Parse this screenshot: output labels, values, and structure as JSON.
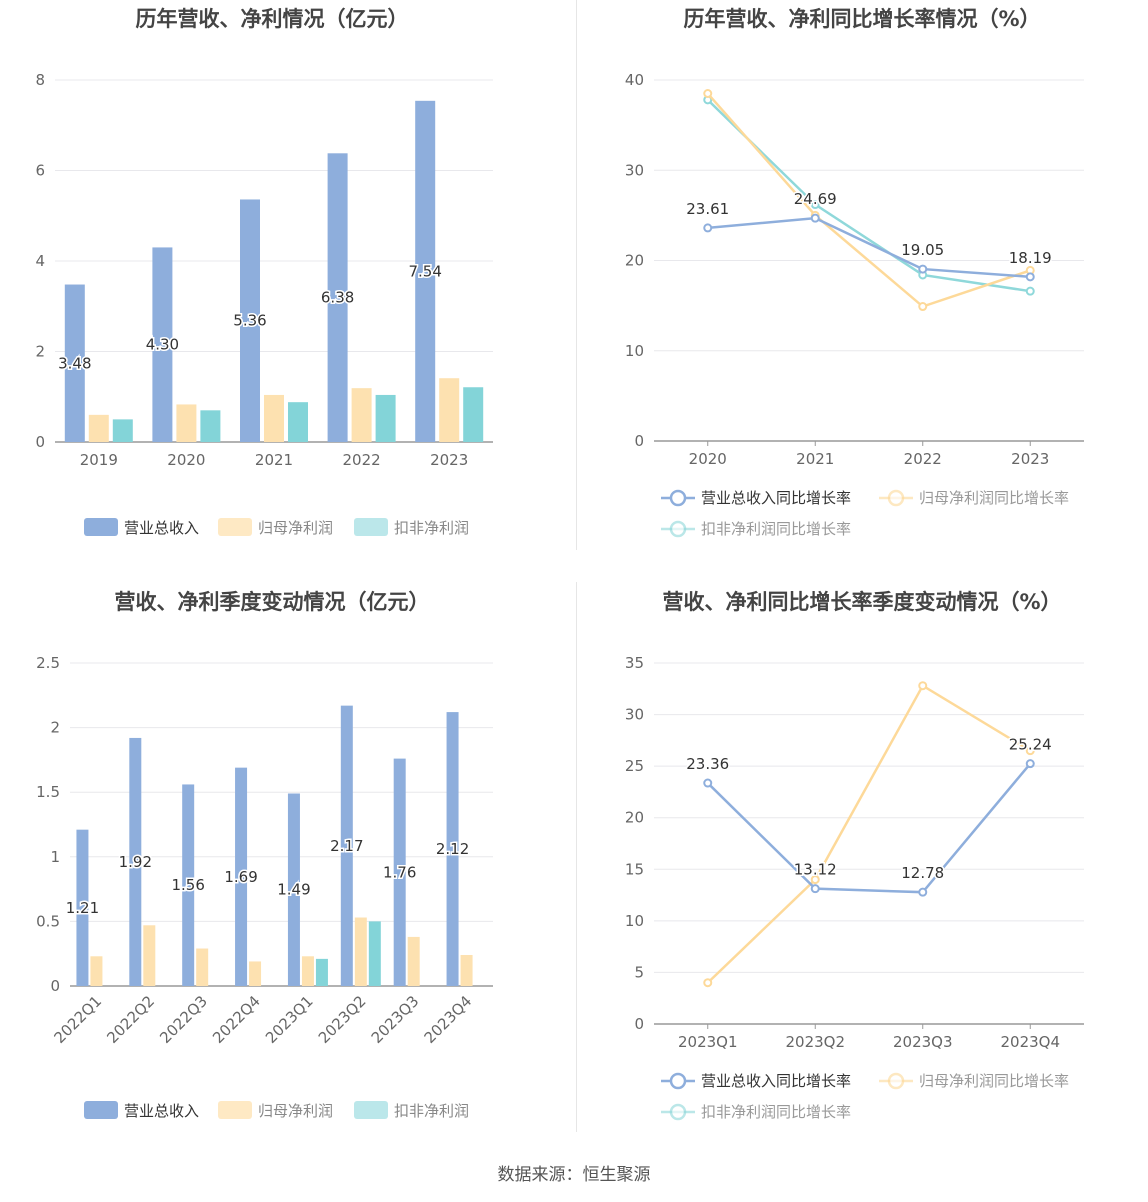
{
  "source": "数据来源：恒生聚源",
  "colors": {
    "revenue": "#8eaedc",
    "net_profit": "#fde1b0",
    "deducted": "#83d4d8",
    "revenue_line": "#8eaedc",
    "net_line": "#fdd999",
    "deducted_line": "#8fd8da",
    "grid": "#e8e8ec",
    "axis": "#999999"
  },
  "chart_data": [
    {
      "id": "c1",
      "type": "bar",
      "title": "历年营收、净利情况（亿元）",
      "categories": [
        "2019",
        "2020",
        "2021",
        "2022",
        "2023"
      ],
      "yticks": [
        "0",
        "2",
        "4",
        "6",
        "8"
      ],
      "ylim": [
        0,
        8
      ],
      "series": [
        {
          "name": "营业总收入",
          "values": [
            3.48,
            4.3,
            5.36,
            6.38,
            7.54
          ],
          "labels": [
            "3.48",
            "4.30",
            "5.36",
            "6.38",
            "7.54"
          ]
        },
        {
          "name": "归母净利润",
          "values": [
            0.6,
            0.83,
            1.04,
            1.19,
            1.41
          ]
        },
        {
          "name": "扣非净利润",
          "values": [
            0.5,
            0.7,
            0.88,
            1.04,
            1.21
          ]
        }
      ],
      "legend": "bottom"
    },
    {
      "id": "c2",
      "type": "line",
      "title": "历年营收、净利同比增长率情况（%）",
      "categories": [
        "2020",
        "2021",
        "2022",
        "2023"
      ],
      "yticks": [
        "0",
        "10",
        "20",
        "30",
        "40"
      ],
      "ylim": [
        0,
        40
      ],
      "series": [
        {
          "name": "营业总收入同比增长率",
          "values": [
            23.61,
            24.69,
            19.05,
            18.19
          ],
          "labels": [
            "23.61",
            "24.69",
            "19.05",
            "18.19"
          ]
        },
        {
          "name": "归母净利润同比增长率",
          "values": [
            38.5,
            25.0,
            14.9,
            18.9
          ]
        },
        {
          "name": "扣非净利润同比增长率",
          "values": [
            37.8,
            26.2,
            18.4,
            16.6
          ]
        }
      ],
      "legend": "bottom"
    },
    {
      "id": "c3",
      "type": "bar",
      "title": "营收、净利季度变动情况（亿元）",
      "categories": [
        "2022Q1",
        "2022Q2",
        "2022Q3",
        "2022Q4",
        "2023Q1",
        "2023Q2",
        "2023Q3",
        "2023Q4"
      ],
      "yticks": [
        "0",
        "0.5",
        "1",
        "1.5",
        "2",
        "2.5"
      ],
      "ylim": [
        0,
        2.5
      ],
      "series": [
        {
          "name": "营业总收入",
          "values": [
            1.21,
            1.92,
            1.56,
            1.69,
            1.49,
            2.17,
            1.76,
            2.12
          ],
          "labels": [
            "1.21",
            "1.92",
            "1.56",
            "1.69",
            "1.49",
            "2.17",
            "1.76",
            "2.12"
          ]
        },
        {
          "name": "归母净利润",
          "values": [
            0.23,
            0.47,
            0.29,
            0.19,
            0.23,
            0.53,
            0.38,
            0.24
          ]
        },
        {
          "name": "扣非净利润",
          "values": [
            null,
            null,
            null,
            null,
            0.21,
            0.5,
            null,
            null
          ]
        }
      ],
      "legend": "bottom"
    },
    {
      "id": "c4",
      "type": "line",
      "title": "营收、净利同比增长率季度变动情况（%）",
      "categories": [
        "2023Q1",
        "2023Q2",
        "2023Q3",
        "2023Q4"
      ],
      "yticks": [
        "0",
        "5",
        "10",
        "15",
        "20",
        "25",
        "30",
        "35"
      ],
      "ylim": [
        0,
        35
      ],
      "series": [
        {
          "name": "营业总收入同比增长率",
          "values": [
            23.36,
            13.12,
            12.78,
            25.24
          ],
          "labels": [
            "23.36",
            "13.12",
            "12.78",
            "25.24"
          ]
        },
        {
          "name": "归母净利润同比增长率",
          "values": [
            4.0,
            14.0,
            32.8,
            26.5
          ]
        },
        {
          "name": "扣非净利润同比增长率",
          "values": [
            null,
            null,
            null,
            null
          ]
        }
      ],
      "legend": "bottom"
    }
  ]
}
